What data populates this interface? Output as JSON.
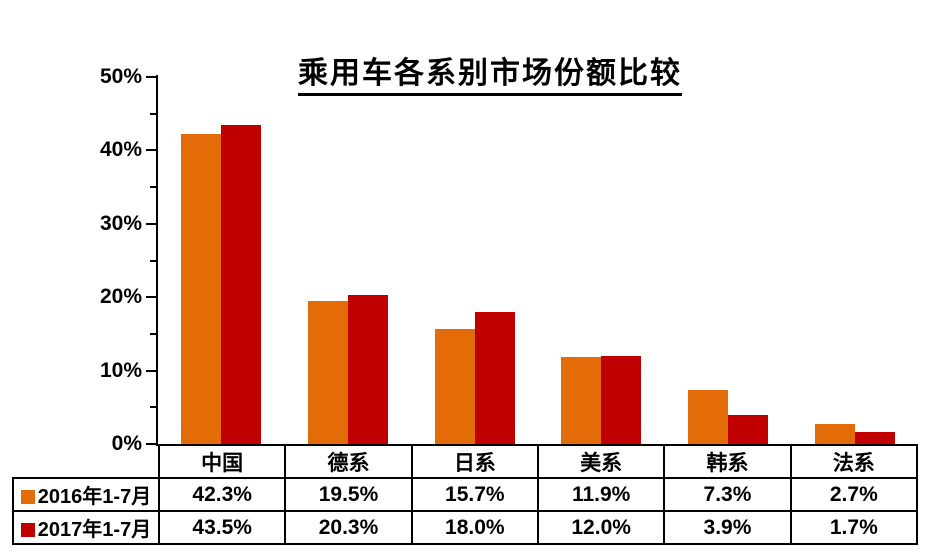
{
  "title": "乘用车各系别市场份额比较",
  "chart_data": {
    "type": "bar",
    "title": "乘用车各系别市场份额比较",
    "categories": [
      "中国",
      "德系",
      "日系",
      "美系",
      "韩系",
      "法系"
    ],
    "series": [
      {
        "name": "2016年1-7月",
        "color": "#E36C09",
        "values": [
          42.3,
          19.5,
          15.7,
          11.9,
          7.3,
          2.7
        ]
      },
      {
        "name": "2017年1-7月",
        "color": "#C00000",
        "values": [
          43.5,
          20.3,
          18.0,
          12.0,
          3.9,
          1.7
        ]
      }
    ],
    "value_suffix": "%",
    "xlabel": "",
    "ylabel": "",
    "ylim": [
      0,
      50
    ],
    "ytick_interval": 10,
    "yminor_interval": 5,
    "ytick_labels": [
      "0%",
      "10%",
      "20%",
      "30%",
      "40%",
      "50%"
    ],
    "grid": false,
    "legend_position": "table-left",
    "has_data_table": true
  },
  "colors": {
    "axis": "#000000",
    "text": "#000000",
    "background": "#FFFFFF",
    "table_border": "#000000"
  }
}
